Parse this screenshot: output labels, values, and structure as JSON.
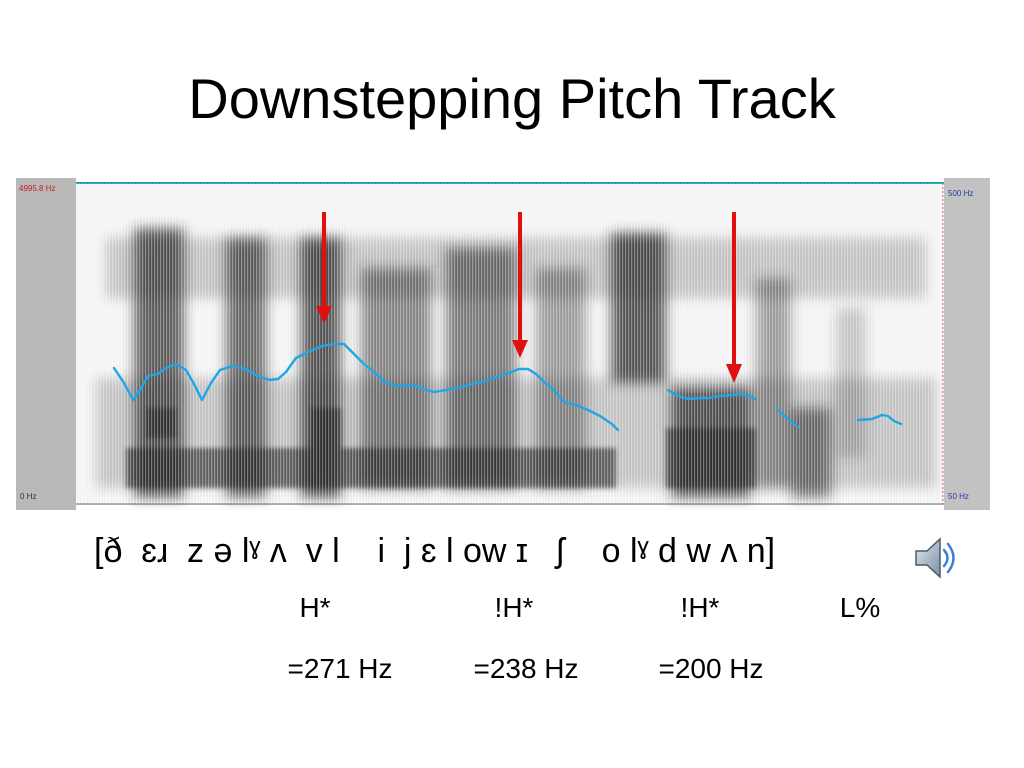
{
  "title": "Downstepping Pitch Track",
  "spectrogram": {
    "freq_top_left": "4995.8 Hz",
    "freq_bottom_left": "0 Hz",
    "pitch_top_right": "500 Hz",
    "pitch_bottom_right": "50 Hz",
    "pitch_color": "#1fa6e6",
    "arrow_color": "#e01010"
  },
  "transcription": "[ð  ɛɹ  z ə lˠ ʌ  v l    i  j ɛ l ow ɪ   ʃ    o lˠ d w ʌ n]",
  "tones": [
    {
      "label": "H*",
      "value": "=271 Hz"
    },
    {
      "label": "!H*",
      "value": "=238 Hz"
    },
    {
      "label": "!H*",
      "value": "=200 Hz"
    },
    {
      "label": "L%",
      "value": ""
    }
  ],
  "speaker_icon": "speaker-icon"
}
